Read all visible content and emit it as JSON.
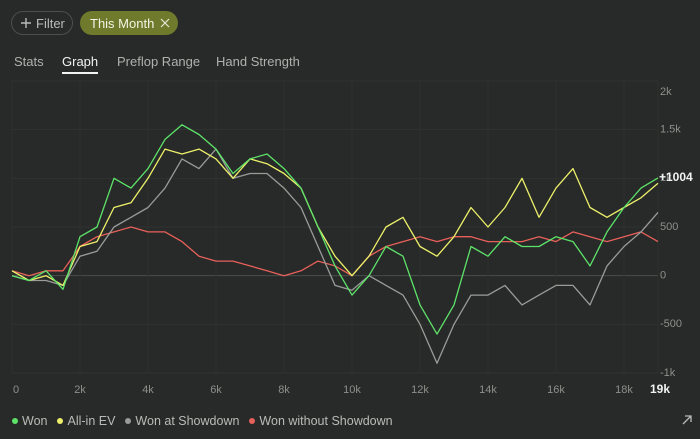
{
  "filter_button": "Filter",
  "active_filter": "This Month",
  "tabs": [
    "Stats",
    "Graph",
    "Preflop Range",
    "Hand Strength"
  ],
  "selected_tab": 1,
  "chart_data": {
    "type": "line",
    "x": [
      0,
      500,
      1000,
      1500,
      2000,
      2500,
      3000,
      3500,
      4000,
      4500,
      5000,
      5500,
      6000,
      6500,
      7000,
      7500,
      8000,
      8500,
      9000,
      9500,
      10000,
      10500,
      11000,
      11500,
      12000,
      12500,
      13000,
      13500,
      14000,
      14500,
      15000,
      15500,
      16000,
      16500,
      17000,
      17500,
      18000,
      18500,
      19000
    ],
    "xlim": [
      0,
      19000
    ],
    "xticks": [
      {
        "value": 0,
        "label": "0"
      },
      {
        "value": 2000,
        "label": "2k"
      },
      {
        "value": 4000,
        "label": "4k"
      },
      {
        "value": 6000,
        "label": "6k"
      },
      {
        "value": 8000,
        "label": "8k"
      },
      {
        "value": 10000,
        "label": "10k"
      },
      {
        "value": 12000,
        "label": "12k"
      },
      {
        "value": 14000,
        "label": "14k"
      },
      {
        "value": 16000,
        "label": "16k"
      },
      {
        "value": 18000,
        "label": "18k"
      },
      {
        "value": 19000,
        "label": "19k"
      }
    ],
    "ylim": [
      -1000,
      2000
    ],
    "yticks": [
      {
        "value": 2000,
        "label": "2k"
      },
      {
        "value": 1500,
        "label": "1.5k"
      },
      {
        "value": 1000,
        "label": "1k"
      },
      500,
      0,
      -500,
      {
        "value": -1000,
        "label": "-1k"
      }
    ],
    "end_label": "+1004",
    "series": [
      {
        "name": "Won",
        "color": "#5ee36a",
        "values": [
          0,
          -50,
          50,
          -140,
          400,
          500,
          1000,
          900,
          1100,
          1400,
          1550,
          1450,
          1300,
          1050,
          1200,
          1250,
          1100,
          900,
          500,
          100,
          -200,
          0,
          300,
          200,
          -300,
          -600,
          -300,
          300,
          200,
          400,
          300,
          300,
          400,
          350,
          100,
          450,
          700,
          900,
          1004
        ]
      },
      {
        "name": "All-in EV",
        "color": "#eef06a",
        "values": [
          50,
          -50,
          0,
          -100,
          300,
          350,
          700,
          750,
          1000,
          1300,
          1250,
          1300,
          1200,
          1000,
          1200,
          1150,
          1050,
          900,
          500,
          200,
          0,
          200,
          500,
          600,
          300,
          200,
          400,
          700,
          500,
          700,
          1000,
          600,
          900,
          1100,
          700,
          600,
          700,
          800,
          950
        ]
      },
      {
        "name": "Won at Showdown",
        "color": "#9a9c9a",
        "values": [
          0,
          -50,
          -50,
          -100,
          200,
          250,
          500,
          600,
          700,
          900,
          1200,
          1100,
          1300,
          1000,
          1050,
          1050,
          900,
          700,
          300,
          -100,
          -150,
          0,
          -100,
          -200,
          -500,
          -900,
          -500,
          -200,
          -200,
          -100,
          -300,
          -200,
          -100,
          -100,
          -300,
          100,
          300,
          450,
          650
        ]
      },
      {
        "name": "Won without Showdown",
        "color": "#e8605a",
        "values": [
          50,
          0,
          50,
          50,
          300,
          400,
          450,
          500,
          450,
          450,
          350,
          200,
          150,
          150,
          100,
          50,
          0,
          50,
          150,
          100,
          0,
          200,
          300,
          350,
          400,
          350,
          400,
          400,
          350,
          350,
          350,
          400,
          350,
          450,
          400,
          350,
          400,
          450,
          350
        ]
      }
    ]
  }
}
